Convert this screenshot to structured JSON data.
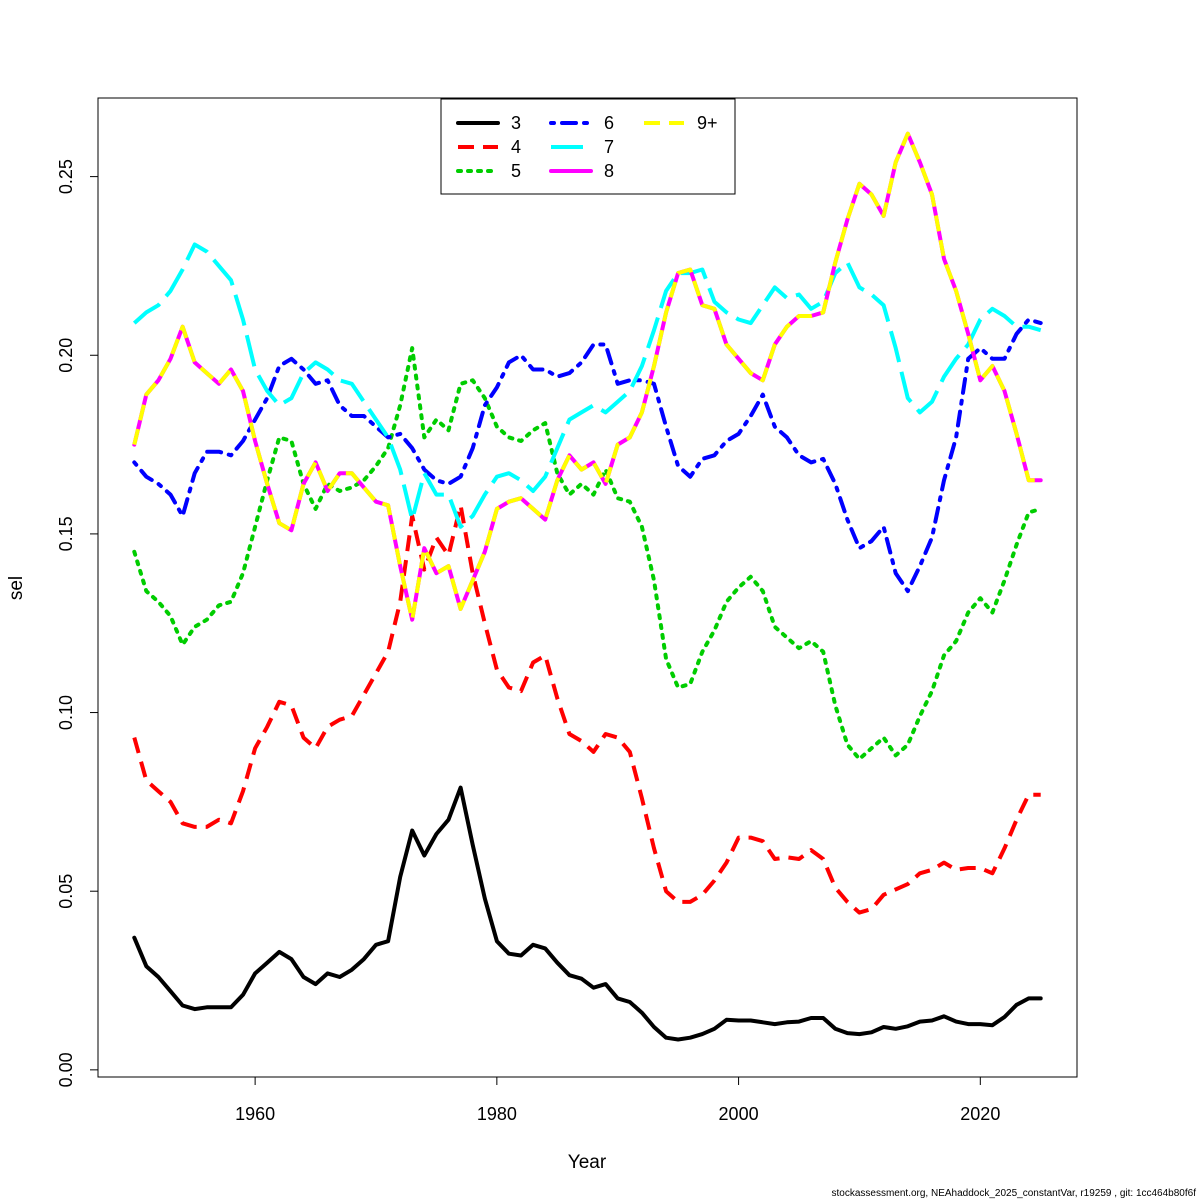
{
  "chart_data": {
    "type": "line",
    "xlabel": "Year",
    "ylabel": "sel",
    "xlim": [
      1947,
      2028
    ],
    "ylim": [
      -0.002,
      0.272
    ],
    "x_ticks": [
      1960,
      1980,
      2000,
      2020
    ],
    "y_ticks": [
      0.0,
      0.05,
      0.1,
      0.15,
      0.2,
      0.25
    ],
    "y_tick_labels": [
      "0.00",
      "0.05",
      "0.10",
      "0.15",
      "0.20",
      "0.25"
    ],
    "grid": false,
    "legend_position": "top-center",
    "x": [
      1950,
      1951,
      1952,
      1953,
      1954,
      1955,
      1956,
      1957,
      1958,
      1959,
      1960,
      1961,
      1962,
      1963,
      1964,
      1965,
      1966,
      1967,
      1968,
      1969,
      1970,
      1971,
      1972,
      1973,
      1974,
      1975,
      1976,
      1977,
      1978,
      1979,
      1980,
      1981,
      1982,
      1983,
      1984,
      1985,
      1986,
      1987,
      1988,
      1989,
      1990,
      1991,
      1992,
      1993,
      1994,
      1995,
      1996,
      1997,
      1998,
      1999,
      2000,
      2001,
      2002,
      2003,
      2004,
      2005,
      2006,
      2007,
      2008,
      2009,
      2010,
      2011,
      2012,
      2013,
      2014,
      2015,
      2016,
      2017,
      2018,
      2019,
      2020,
      2021,
      2022,
      2023,
      2024,
      2025
    ],
    "series": [
      {
        "name": "3",
        "color": "#000000",
        "dash": "solid",
        "values": [
          0.037,
          0.029,
          0.026,
          0.022,
          0.018,
          0.017,
          0.0175,
          0.0175,
          0.0175,
          0.021,
          0.027,
          0.03,
          0.033,
          0.031,
          0.026,
          0.024,
          0.027,
          0.026,
          0.028,
          0.031,
          0.035,
          0.036,
          0.054,
          0.067,
          0.06,
          0.066,
          0.07,
          0.079,
          0.063,
          0.048,
          0.036,
          0.0325,
          0.032,
          0.035,
          0.034,
          0.03,
          0.0265,
          0.0255,
          0.023,
          0.024,
          0.02,
          0.019,
          0.016,
          0.012,
          0.009,
          0.0085,
          0.009,
          0.01,
          0.0115,
          0.014,
          0.0138,
          0.0138,
          0.0133,
          0.0128,
          0.0133,
          0.0135,
          0.0145,
          0.0145,
          0.0115,
          0.0103,
          0.01,
          0.0105,
          0.012,
          0.0115,
          0.0122,
          0.0135,
          0.0138,
          0.015,
          0.0135,
          0.0128,
          0.0128,
          0.0125,
          0.0148,
          0.0182,
          0.02,
          0.02
        ]
      },
      {
        "name": "4",
        "color": "#ff0000",
        "dash": "dashed",
        "values": [
          0.093,
          0.081,
          0.078,
          0.075,
          0.069,
          0.068,
          0.068,
          0.07,
          0.069,
          0.078,
          0.09,
          0.096,
          0.103,
          0.102,
          0.093,
          0.09,
          0.096,
          0.098,
          0.099,
          0.105,
          0.111,
          0.117,
          0.131,
          0.155,
          0.14,
          0.149,
          0.144,
          0.158,
          0.139,
          0.125,
          0.112,
          0.107,
          0.106,
          0.114,
          0.116,
          0.104,
          0.094,
          0.092,
          0.089,
          0.094,
          0.093,
          0.089,
          0.076,
          0.062,
          0.05,
          0.047,
          0.047,
          0.049,
          0.053,
          0.058,
          0.065,
          0.065,
          0.064,
          0.059,
          0.0595,
          0.059,
          0.0615,
          0.059,
          0.051,
          0.047,
          0.044,
          0.045,
          0.049,
          0.0505,
          0.052,
          0.055,
          0.056,
          0.058,
          0.056,
          0.0565,
          0.0565,
          0.055,
          0.062,
          0.07,
          0.077,
          0.077
        ]
      },
      {
        "name": "5",
        "color": "#00cd00",
        "dash": "dotted",
        "values": [
          0.145,
          0.134,
          0.131,
          0.127,
          0.119,
          0.124,
          0.126,
          0.13,
          0.131,
          0.139,
          0.152,
          0.165,
          0.177,
          0.176,
          0.164,
          0.157,
          0.164,
          0.162,
          0.163,
          0.165,
          0.169,
          0.174,
          0.186,
          0.202,
          0.177,
          0.182,
          0.179,
          0.192,
          0.193,
          0.188,
          0.18,
          0.177,
          0.176,
          0.179,
          0.181,
          0.167,
          0.161,
          0.164,
          0.161,
          0.168,
          0.16,
          0.159,
          0.152,
          0.137,
          0.115,
          0.107,
          0.108,
          0.117,
          0.123,
          0.131,
          0.135,
          0.138,
          0.134,
          0.124,
          0.121,
          0.118,
          0.12,
          0.117,
          0.102,
          0.091,
          0.087,
          0.09,
          0.093,
          0.088,
          0.091,
          0.099,
          0.106,
          0.116,
          0.12,
          0.128,
          0.132,
          0.128,
          0.137,
          0.147,
          0.156,
          0.157
        ]
      },
      {
        "name": "6",
        "color": "#0000ff",
        "dash": "dashdot",
        "values": [
          0.17,
          0.166,
          0.164,
          0.161,
          0.155,
          0.167,
          0.173,
          0.173,
          0.172,
          0.176,
          0.182,
          0.188,
          0.197,
          0.199,
          0.196,
          0.192,
          0.193,
          0.186,
          0.183,
          0.183,
          0.18,
          0.177,
          0.178,
          0.174,
          0.168,
          0.165,
          0.164,
          0.166,
          0.174,
          0.186,
          0.191,
          0.198,
          0.2,
          0.196,
          0.196,
          0.194,
          0.195,
          0.198,
          0.203,
          0.203,
          0.192,
          0.193,
          0.193,
          0.192,
          0.18,
          0.169,
          0.166,
          0.171,
          0.172,
          0.176,
          0.178,
          0.183,
          0.189,
          0.18,
          0.177,
          0.172,
          0.17,
          0.171,
          0.164,
          0.154,
          0.146,
          0.148,
          0.152,
          0.139,
          0.134,
          0.141,
          0.149,
          0.165,
          0.177,
          0.199,
          0.202,
          0.199,
          0.199,
          0.206,
          0.21,
          0.209
        ]
      },
      {
        "name": "7",
        "color": "#00ffff",
        "dash": "longdash",
        "values": [
          0.209,
          0.212,
          0.214,
          0.218,
          0.224,
          0.231,
          0.229,
          0.225,
          0.221,
          0.21,
          0.196,
          0.19,
          0.186,
          0.188,
          0.195,
          0.198,
          0.196,
          0.193,
          0.192,
          0.187,
          0.182,
          0.177,
          0.168,
          0.154,
          0.167,
          0.161,
          0.161,
          0.152,
          0.155,
          0.161,
          0.166,
          0.167,
          0.165,
          0.162,
          0.166,
          0.174,
          0.182,
          0.184,
          0.186,
          0.184,
          0.187,
          0.19,
          0.197,
          0.207,
          0.218,
          0.223,
          0.223,
          0.224,
          0.215,
          0.212,
          0.21,
          0.209,
          0.214,
          0.219,
          0.216,
          0.217,
          0.213,
          0.215,
          0.223,
          0.226,
          0.219,
          0.217,
          0.214,
          0.202,
          0.188,
          0.184,
          0.187,
          0.194,
          0.199,
          0.203,
          0.21,
          0.213,
          0.211,
          0.208,
          0.208,
          0.207
        ]
      },
      {
        "name": "8",
        "color": "#ff00ff",
        "dash": "solid",
        "values": [
          0.175,
          0.189,
          0.193,
          0.199,
          0.208,
          0.198,
          0.195,
          0.192,
          0.196,
          0.19,
          0.176,
          0.164,
          0.153,
          0.151,
          0.164,
          0.17,
          0.162,
          0.167,
          0.167,
          0.163,
          0.159,
          0.158,
          0.141,
          0.126,
          0.146,
          0.139,
          0.141,
          0.129,
          0.137,
          0.145,
          0.157,
          0.159,
          0.16,
          0.157,
          0.154,
          0.165,
          0.172,
          0.168,
          0.17,
          0.164,
          0.175,
          0.177,
          0.184,
          0.197,
          0.212,
          0.223,
          0.224,
          0.214,
          0.213,
          0.203,
          0.199,
          0.195,
          0.193,
          0.203,
          0.208,
          0.211,
          0.211,
          0.212,
          0.226,
          0.238,
          0.248,
          0.245,
          0.239,
          0.254,
          0.262,
          0.254,
          0.245,
          0.227,
          0.218,
          0.206,
          0.193,
          0.197,
          0.19,
          0.178,
          0.165,
          0.165
        ]
      },
      {
        "name": "9+",
        "color": "#ffff00",
        "dash": "dashed",
        "values": [
          0.175,
          0.189,
          0.193,
          0.199,
          0.208,
          0.198,
          0.195,
          0.192,
          0.196,
          0.19,
          0.176,
          0.164,
          0.153,
          0.151,
          0.164,
          0.17,
          0.162,
          0.167,
          0.167,
          0.163,
          0.159,
          0.158,
          0.141,
          0.126,
          0.146,
          0.139,
          0.141,
          0.129,
          0.137,
          0.145,
          0.157,
          0.159,
          0.16,
          0.157,
          0.154,
          0.165,
          0.172,
          0.168,
          0.17,
          0.164,
          0.175,
          0.177,
          0.184,
          0.197,
          0.212,
          0.223,
          0.224,
          0.214,
          0.213,
          0.203,
          0.199,
          0.195,
          0.193,
          0.203,
          0.208,
          0.211,
          0.211,
          0.212,
          0.226,
          0.238,
          0.248,
          0.245,
          0.239,
          0.254,
          0.262,
          0.254,
          0.245,
          0.227,
          0.218,
          0.206,
          0.193,
          0.197,
          0.19,
          0.178,
          0.165,
          0.165
        ]
      }
    ]
  },
  "footer": "stockassessment.org, NEAhaddock_2025_constantVar, r19259 , git: 1cc464b80f6f"
}
